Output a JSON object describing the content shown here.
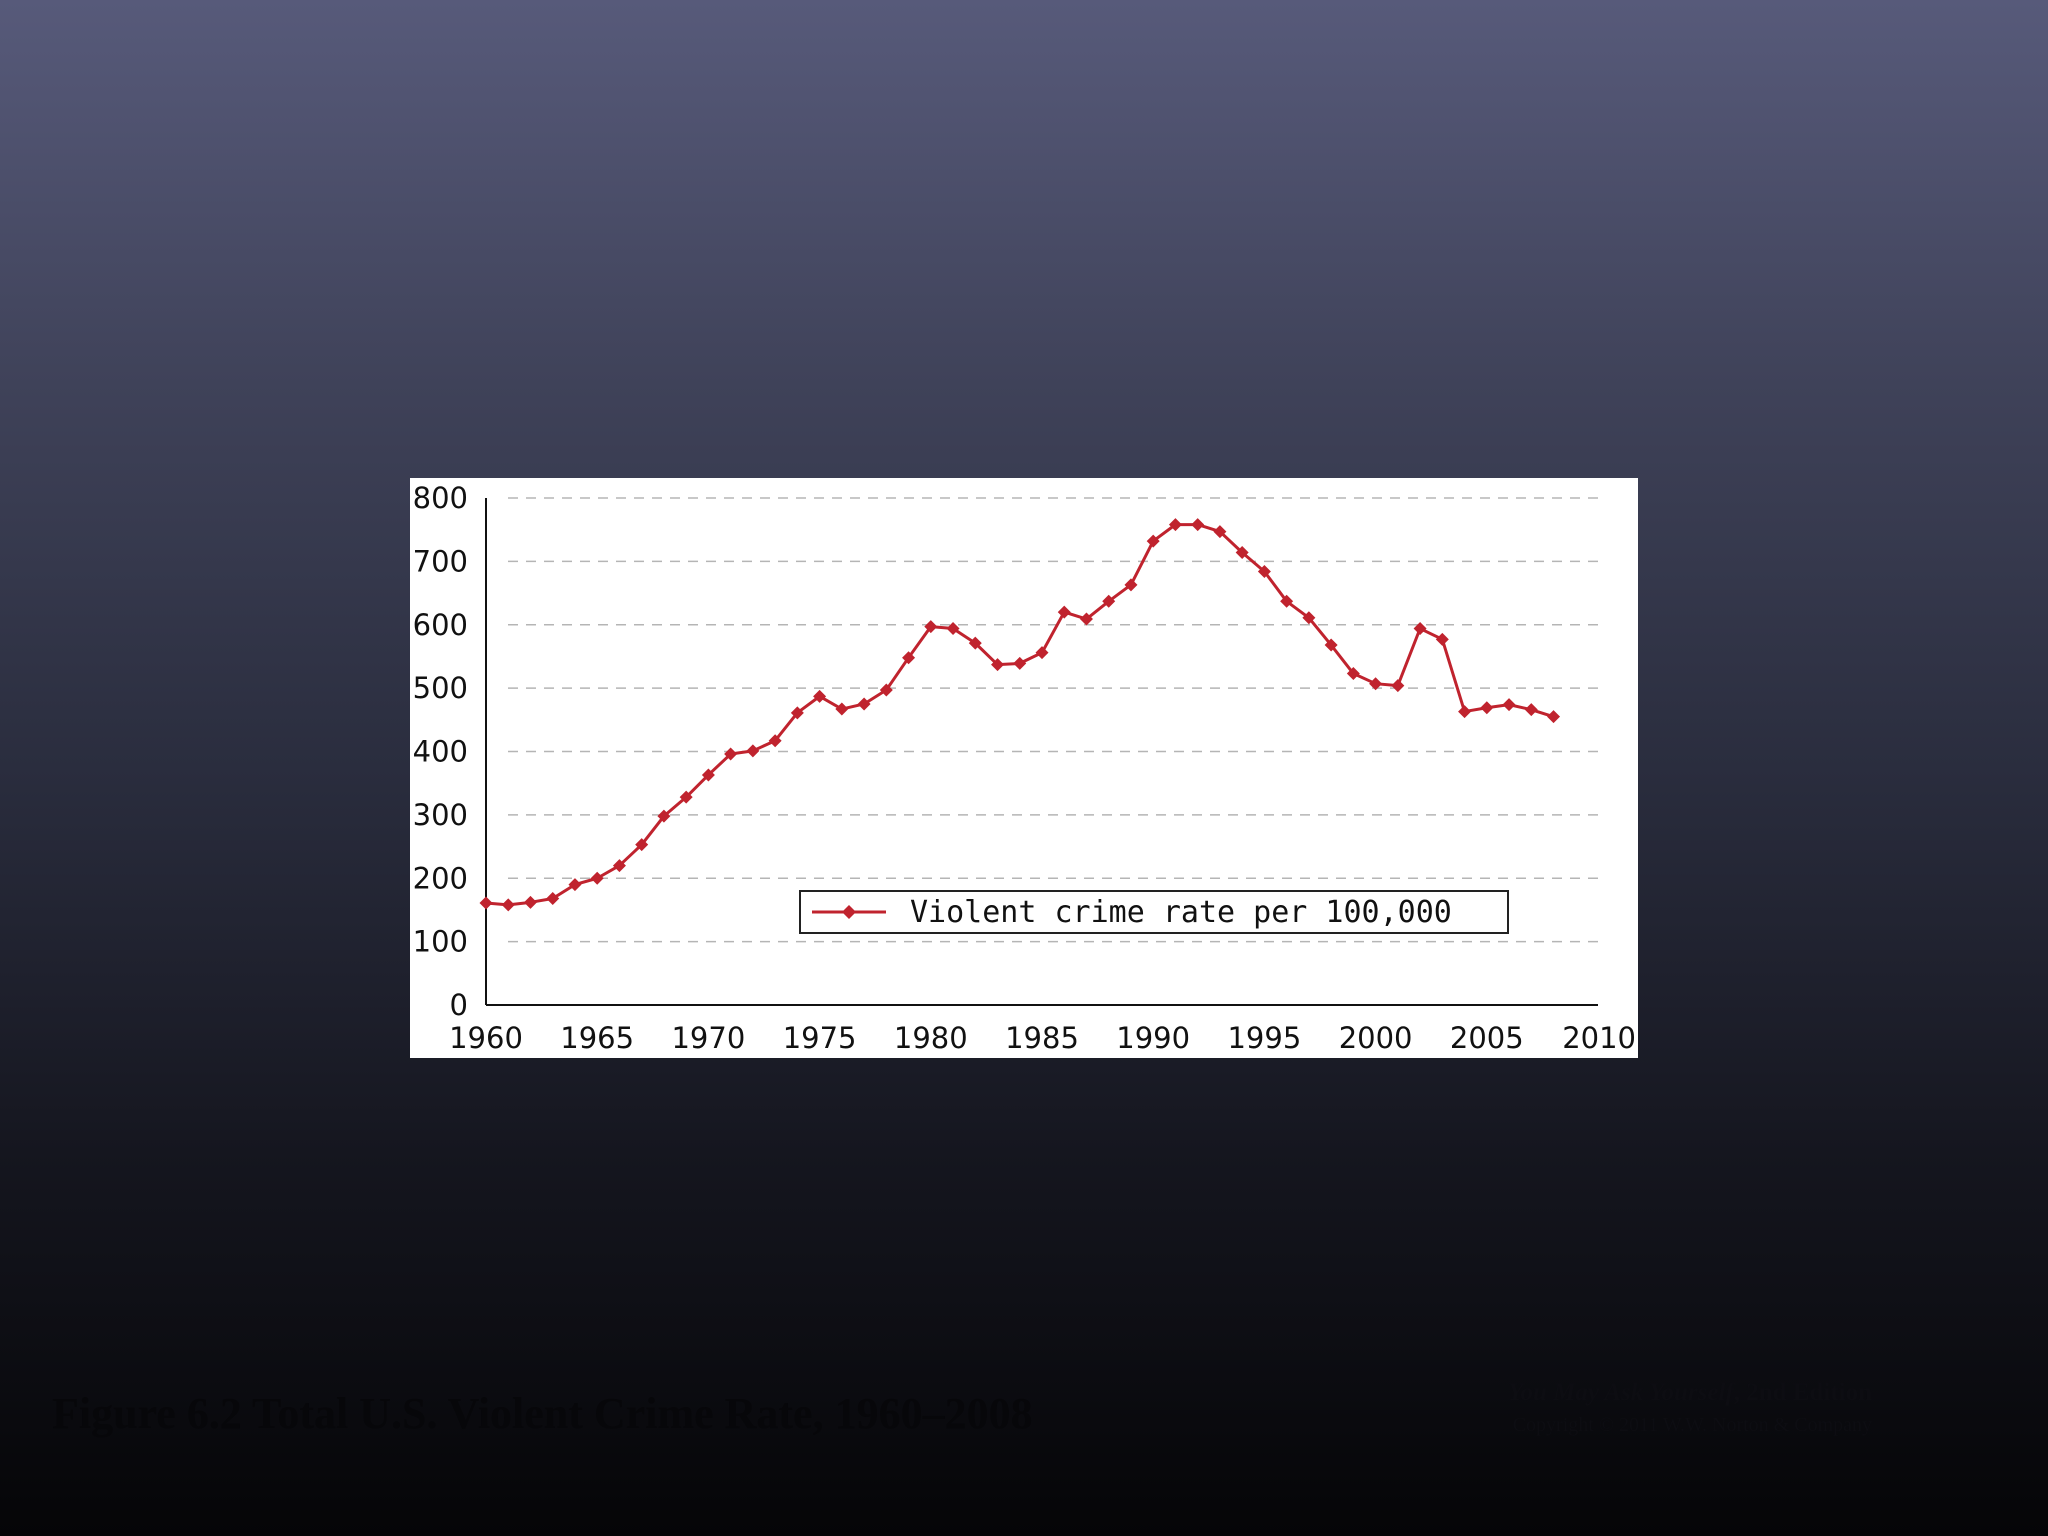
{
  "chart_data": {
    "type": "line",
    "title": "",
    "xlabel": "",
    "ylabel": "",
    "xlim": [
      1960,
      2010
    ],
    "ylim": [
      0,
      800
    ],
    "x_ticks": [
      1960,
      1965,
      1970,
      1975,
      1980,
      1985,
      1990,
      1995,
      2000,
      2005,
      2010
    ],
    "y_ticks": [
      0,
      100,
      200,
      300,
      400,
      500,
      600,
      700,
      800
    ],
    "grid": "horizontal dashed",
    "legend_position": "bottom-right",
    "series": [
      {
        "name": "Violent crime rate per 100,000",
        "color": "#c0232e",
        "marker": "diamond",
        "x": [
          1960,
          1961,
          1962,
          1963,
          1964,
          1965,
          1966,
          1967,
          1968,
          1969,
          1970,
          1971,
          1972,
          1973,
          1974,
          1975,
          1976,
          1977,
          1978,
          1979,
          1980,
          1981,
          1982,
          1983,
          1984,
          1985,
          1986,
          1987,
          1988,
          1989,
          1990,
          1991,
          1992,
          1993,
          1994,
          1995,
          1996,
          1997,
          1998,
          1999,
          2000,
          2001,
          2002,
          2003,
          2004,
          2005,
          2006,
          2007,
          2008
        ],
        "values": [
          161,
          158,
          162,
          168,
          190,
          200,
          220,
          253,
          298,
          328,
          363,
          396,
          401,
          417,
          461,
          487,
          467,
          475,
          497,
          548,
          597,
          594,
          571,
          537,
          539,
          556,
          620,
          609,
          637,
          663,
          732,
          758,
          758,
          747,
          714,
          684,
          637,
          611,
          568,
          523,
          507,
          504,
          594,
          577,
          463,
          469,
          474,
          466,
          455
        ]
      }
    ]
  },
  "caption": {
    "figure_title": "Figure 6.2 Total U.S. Violent Crime Rate, 1960–2008"
  },
  "credit": {
    "book_title": "You May Ask Yourself",
    "edition": ", 2nd Edition",
    "copyright": "Copyright © 2011 W.W. Norton & Company"
  }
}
